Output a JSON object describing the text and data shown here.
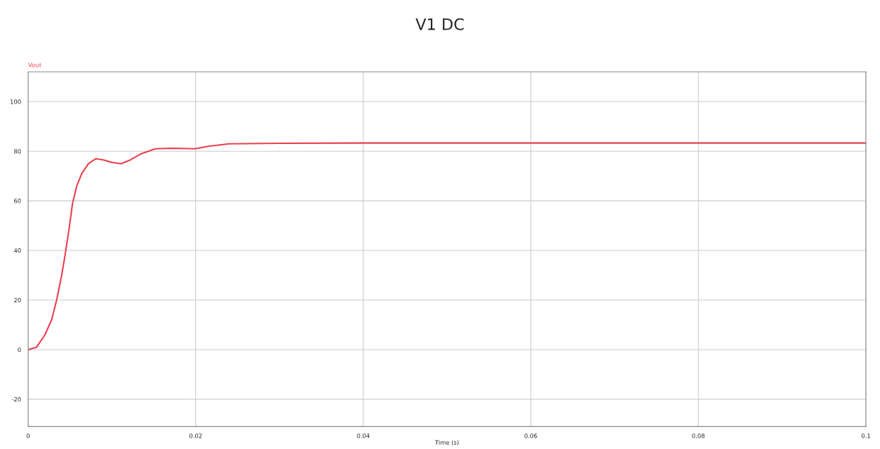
{
  "chart_data": {
    "type": "line",
    "title": "V1 DC",
    "xlabel": "Time (s)",
    "ylabel": "Vout",
    "x": [
      0,
      0.001,
      0.002,
      0.0028,
      0.0034,
      0.004,
      0.0044,
      0.0049,
      0.0053,
      0.0058,
      0.0064,
      0.0072,
      0.0081,
      0.009,
      0.01,
      0.0111,
      0.0122,
      0.0135,
      0.0152,
      0.017,
      0.0199,
      0.0215,
      0.024,
      0.03,
      0.04,
      0.06,
      0.08,
      0.1
    ],
    "series": [
      {
        "color": "#e8404f",
        "values": [
          0,
          1,
          6,
          12,
          20,
          30,
          38,
          49,
          59,
          66,
          71,
          75,
          77,
          76.5,
          75.5,
          75,
          76.5,
          79,
          81,
          81.2,
          81,
          82,
          83,
          83.2,
          83.3,
          83.3,
          83.3,
          83.3
        ]
      }
    ],
    "xlim": [
      0,
      0.1
    ],
    "ylim": [
      -31,
      112
    ],
    "xticks": [
      0,
      0.02,
      0.04,
      0.06,
      0.08,
      0.1
    ],
    "yticks": [
      -20,
      0,
      20,
      40,
      60,
      80,
      100
    ],
    "grid": true,
    "marker": "none",
    "line_style": "solid",
    "legend": false
  }
}
